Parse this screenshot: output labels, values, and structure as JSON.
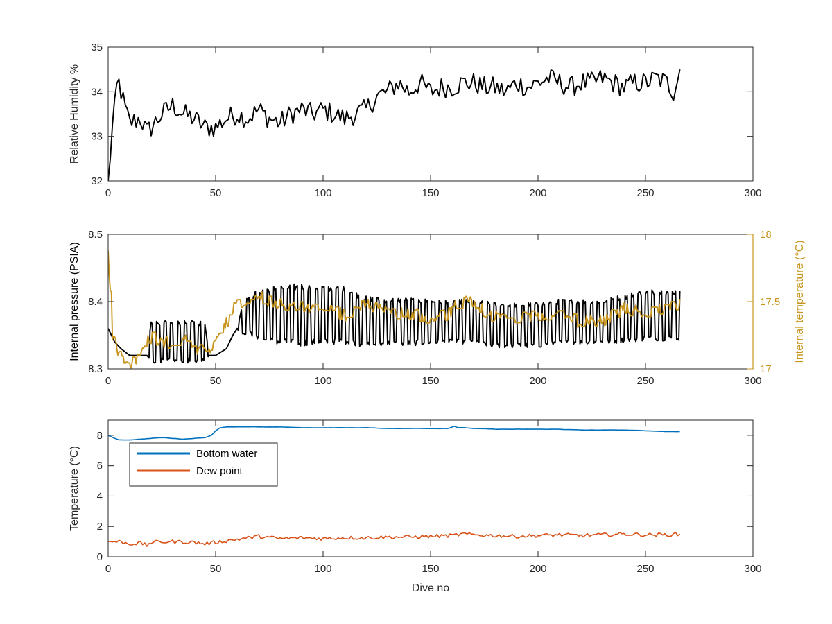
{
  "chart_data": [
    {
      "type": "line",
      "title": "",
      "xlabel": "",
      "ylabel": "Relative Humidity %",
      "xlim": [
        0,
        300
      ],
      "ylim": [
        32,
        35
      ],
      "xticks": [
        "0",
        "50",
        "100",
        "150",
        "200",
        "250",
        "300"
      ],
      "yticks": [
        "32",
        "33",
        "34",
        "35"
      ],
      "grid": false,
      "series": [
        {
          "color": "#000000",
          "style": "noisy",
          "noise": 0.24,
          "x": [
            0,
            1,
            2,
            3,
            4,
            5,
            8,
            10,
            15,
            18,
            20,
            25,
            30,
            35,
            40,
            45,
            50,
            55,
            60,
            65,
            70,
            75,
            80,
            85,
            90,
            95,
            100,
            105,
            110,
            115,
            120,
            125,
            130,
            135,
            140,
            145,
            150,
            155,
            160,
            165,
            170,
            175,
            180,
            185,
            190,
            195,
            200,
            205,
            210,
            215,
            220,
            225,
            230,
            235,
            240,
            245,
            250,
            255,
            260,
            263,
            266
          ],
          "y": [
            32.0,
            32.6,
            33.2,
            33.6,
            34.1,
            34.2,
            33.6,
            33.3,
            33.4,
            33.1,
            33.2,
            33.5,
            33.7,
            33.5,
            33.4,
            33.2,
            33.2,
            33.4,
            33.5,
            33.4,
            33.6,
            33.4,
            33.3,
            33.5,
            33.6,
            33.5,
            33.6,
            33.5,
            33.4,
            33.5,
            33.6,
            33.9,
            34.0,
            34.2,
            34.0,
            34.2,
            34.0,
            34.1,
            34.1,
            34.2,
            34.2,
            34.1,
            34.1,
            34.0,
            34.2,
            34.1,
            34.2,
            34.3,
            34.2,
            34.1,
            34.2,
            34.2,
            34.3,
            34.2,
            34.1,
            34.2,
            34.2,
            34.3,
            34.2,
            34.0,
            34.5
          ]
        }
      ]
    },
    {
      "type": "line",
      "title": "",
      "xlabel": "",
      "ylabel": "Internal pressure (PSIA)",
      "y2label": "Internal temperature (°C)",
      "xlim": [
        0,
        300
      ],
      "ylim": [
        8.3,
        8.5
      ],
      "y2lim": [
        17,
        18
      ],
      "xticks": [
        "0",
        "50",
        "100",
        "150",
        "200",
        "250",
        "300"
      ],
      "yticks": [
        "8.3",
        "8.4",
        "8.5"
      ],
      "y2ticks": [
        "17",
        "17.5",
        "18"
      ],
      "y2color": "#C8961E",
      "grid": false,
      "series": [
        {
          "color": "#000000",
          "axis": "left",
          "style": "cyclic",
          "period": 3.2,
          "x": [
            0,
            3,
            6,
            10,
            15,
            18,
            20,
            30,
            40,
            45,
            47,
            50,
            55,
            58,
            60,
            62,
            65,
            70,
            80,
            90,
            100,
            110,
            120,
            130,
            140,
            150,
            160,
            170,
            180,
            190,
            200,
            210,
            220,
            230,
            240,
            250,
            260,
            266
          ],
          "y": [
            8.36,
            8.34,
            8.33,
            8.32,
            8.32,
            8.32,
            8.34,
            8.34,
            8.34,
            8.34,
            8.32,
            8.32,
            8.33,
            8.35,
            8.36,
            8.37,
            8.38,
            8.38,
            8.38,
            8.38,
            8.38,
            8.38,
            8.37,
            8.37,
            8.37,
            8.37,
            8.37,
            8.37,
            8.365,
            8.365,
            8.365,
            8.37,
            8.37,
            8.37,
            8.375,
            8.38,
            8.38,
            8.38
          ],
          "amp": [
            0.0,
            0.0,
            0.0,
            0.0,
            0.0,
            0.0,
            0.028,
            0.028,
            0.028,
            0.028,
            0.0,
            0.0,
            0.0,
            0.0,
            0.0,
            0.018,
            0.025,
            0.035,
            0.04,
            0.042,
            0.04,
            0.038,
            0.034,
            0.032,
            0.032,
            0.03,
            0.03,
            0.03,
            0.03,
            0.03,
            0.03,
            0.03,
            0.03,
            0.03,
            0.032,
            0.034,
            0.034,
            0.034
          ]
        },
        {
          "color": "#C8961E",
          "axis": "right",
          "style": "stepnoise",
          "noise": 0.05,
          "x": [
            0,
            1,
            2,
            4,
            6,
            8,
            10,
            15,
            20,
            25,
            30,
            35,
            40,
            45,
            50,
            55,
            60,
            65,
            70,
            75,
            80,
            90,
            100,
            110,
            120,
            130,
            140,
            150,
            160,
            165,
            170,
            175,
            180,
            190,
            200,
            210,
            220,
            230,
            240,
            250,
            260,
            266
          ],
          "y": [
            17.88,
            17.6,
            17.25,
            17.15,
            17.1,
            17.05,
            17.02,
            17.1,
            17.25,
            17.2,
            17.2,
            17.22,
            17.15,
            17.12,
            17.2,
            17.35,
            17.5,
            17.5,
            17.55,
            17.5,
            17.48,
            17.45,
            17.45,
            17.4,
            17.48,
            17.42,
            17.42,
            17.38,
            17.42,
            17.55,
            17.5,
            17.42,
            17.38,
            17.38,
            17.38,
            17.4,
            17.35,
            17.35,
            17.45,
            17.42,
            17.45,
            17.5
          ]
        }
      ]
    },
    {
      "type": "line",
      "title": "",
      "xlabel": "Dive no",
      "ylabel": "Temperature (°C)",
      "xlim": [
        0,
        300
      ],
      "ylim": [
        0,
        9
      ],
      "xticks": [
        "0",
        "50",
        "100",
        "150",
        "200",
        "250",
        "300"
      ],
      "yticks": [
        "0",
        "2",
        "4",
        "6",
        "8"
      ],
      "grid": false,
      "legend": "top-left",
      "series": [
        {
          "name": "Bottom water",
          "color": "#0072BD",
          "style": "smooth",
          "noise": 0.02,
          "x": [
            0,
            3,
            5,
            10,
            15,
            20,
            25,
            30,
            35,
            40,
            45,
            48,
            50,
            52,
            55,
            60,
            70,
            80,
            90,
            100,
            110,
            120,
            130,
            140,
            150,
            158,
            161,
            163,
            166,
            170,
            180,
            190,
            200,
            210,
            220,
            230,
            240,
            250,
            260,
            266
          ],
          "y": [
            8.0,
            7.8,
            7.7,
            7.7,
            7.75,
            7.8,
            7.85,
            7.8,
            7.75,
            7.8,
            7.85,
            8.0,
            8.3,
            8.5,
            8.55,
            8.55,
            8.55,
            8.55,
            8.5,
            8.5,
            8.5,
            8.5,
            8.45,
            8.45,
            8.45,
            8.45,
            8.6,
            8.5,
            8.5,
            8.45,
            8.4,
            8.4,
            8.4,
            8.4,
            8.35,
            8.35,
            8.35,
            8.3,
            8.25,
            8.25
          ]
        },
        {
          "name": "Dew point",
          "color": "#D95319",
          "style": "noisy",
          "noise": 0.12,
          "x": [
            0,
            5,
            10,
            15,
            18,
            20,
            30,
            40,
            45,
            50,
            55,
            60,
            70,
            80,
            90,
            100,
            110,
            120,
            130,
            140,
            150,
            160,
            165,
            170,
            180,
            190,
            200,
            210,
            220,
            230,
            240,
            250,
            260,
            266
          ],
          "y": [
            1.0,
            1.0,
            0.85,
            0.9,
            0.75,
            0.95,
            1.0,
            0.95,
            0.85,
            0.95,
            1.05,
            1.15,
            1.35,
            1.2,
            1.25,
            1.2,
            1.25,
            1.25,
            1.3,
            1.3,
            1.35,
            1.4,
            1.5,
            1.45,
            1.4,
            1.35,
            1.4,
            1.45,
            1.4,
            1.45,
            1.5,
            1.45,
            1.45,
            1.5
          ]
        }
      ]
    }
  ]
}
